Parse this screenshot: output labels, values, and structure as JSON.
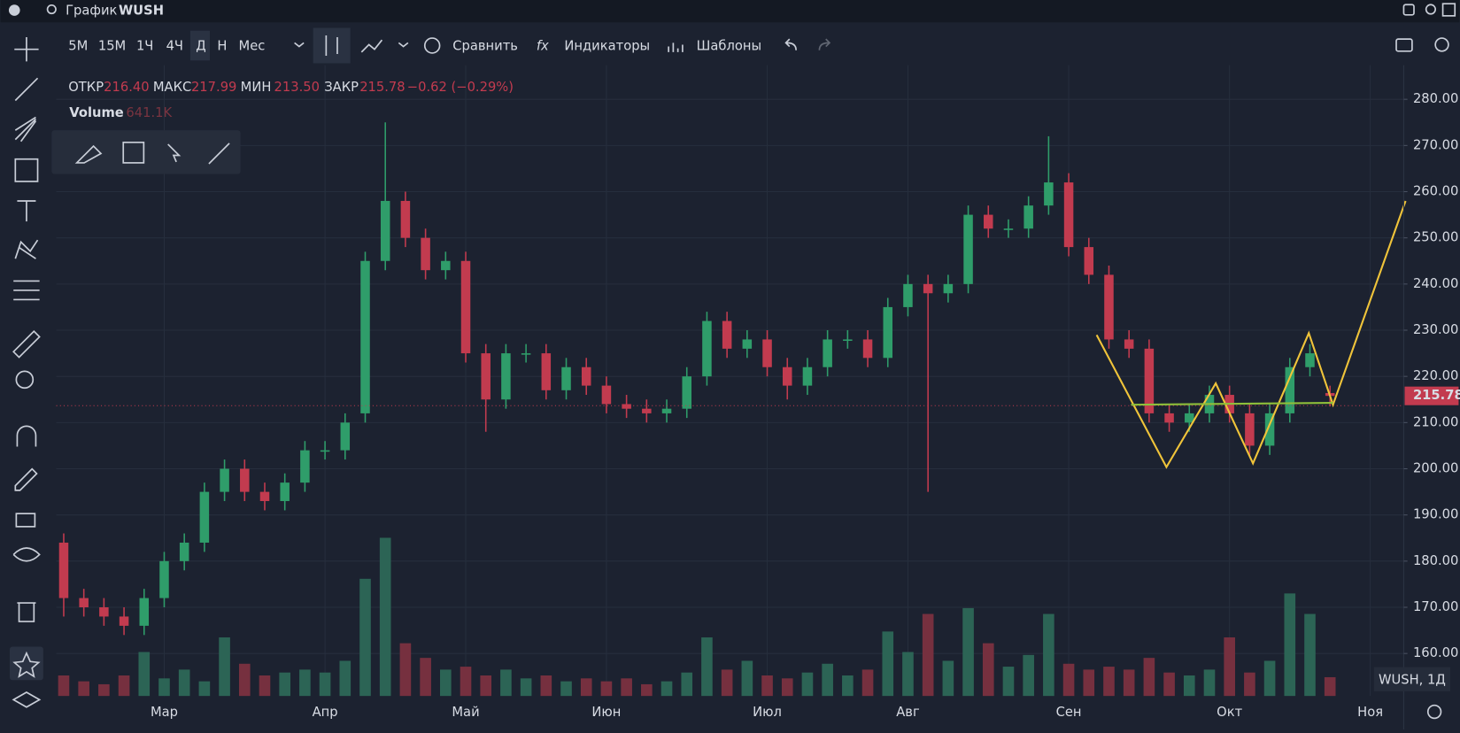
{
  "header": {
    "app_title": "График",
    "symbol": "WUSH"
  },
  "toolbar": {
    "intervals": [
      "5М",
      "15М",
      "1Ч",
      "4Ч",
      "Д",
      "Н",
      "Мес"
    ],
    "compare": "Сравнить",
    "indicators": "Индикаторы",
    "templates": "Шаблоны"
  },
  "legend": {
    "open_label": "ОТКР",
    "open": "216.40",
    "high_label": "МАКС",
    "high": "217.99",
    "low_label": "МИН",
    "low": "213.50",
    "close_label": "ЗАКР",
    "close": "215.78",
    "change": "−0.62 (−0.29%)",
    "volume_label": "Volume",
    "volume": "641.1K"
  },
  "symbol_badge": "WUSH, 1Д",
  "chart_data": {
    "type": "candlestick",
    "categories": [
      null,
      null,
      null,
      null,
      null,
      "Мар",
      null,
      null,
      null,
      null,
      null,
      null,
      null,
      "Апр",
      null,
      null,
      null,
      null,
      null,
      null,
      "Май",
      null,
      null,
      null,
      null,
      null,
      null,
      "Июн",
      null,
      null,
      null,
      null,
      null,
      null,
      null,
      "Июл",
      null,
      null,
      null,
      null,
      null,
      null,
      "Авг",
      null,
      null,
      null,
      null,
      null,
      null,
      null,
      "Сен",
      null,
      null,
      null,
      null,
      null,
      null,
      null,
      "Окт",
      null,
      null,
      null,
      null,
      null,
      null,
      "Ноя",
      null
    ],
    "open": [
      184,
      172,
      170,
      168,
      166,
      172,
      180,
      184,
      195,
      200,
      195,
      193,
      197,
      204,
      204,
      212,
      245,
      258,
      250,
      243,
      245,
      225,
      215,
      225,
      225,
      217,
      222,
      218,
      214,
      213,
      212,
      213,
      220,
      232,
      226,
      228,
      222,
      218,
      222,
      228,
      228,
      224,
      235,
      240,
      238,
      240,
      255,
      252,
      252,
      257,
      262,
      248,
      242,
      228,
      226,
      212,
      210,
      212,
      216,
      212,
      205,
      212,
      222,
      216.4,
      null,
      null,
      null
    ],
    "high": [
      186,
      174,
      172,
      170,
      174,
      182,
      186,
      197,
      202,
      202,
      197,
      199,
      206,
      206,
      212,
      247,
      275,
      260,
      252,
      247,
      247,
      227,
      227,
      227,
      227,
      224,
      224,
      220,
      216,
      215,
      215,
      222,
      234,
      234,
      230,
      230,
      224,
      224,
      230,
      230,
      230,
      237,
      242,
      242,
      242,
      257,
      257,
      254,
      259,
      272,
      264,
      250,
      244,
      230,
      228,
      214,
      214,
      218,
      218,
      214,
      214,
      224,
      227,
      217.99,
      null,
      null,
      null
    ],
    "low": [
      168,
      168,
      166,
      164,
      164,
      170,
      178,
      182,
      193,
      193,
      191,
      191,
      195,
      202,
      202,
      210,
      243,
      248,
      241,
      241,
      223,
      208,
      213,
      223,
      215,
      215,
      216,
      212,
      211,
      210,
      210,
      211,
      218,
      224,
      224,
      220,
      215,
      216,
      220,
      226,
      222,
      222,
      233,
      195,
      236,
      238,
      250,
      250,
      250,
      255,
      246,
      240,
      226,
      224,
      210,
      208,
      208,
      210,
      210,
      203,
      203,
      210,
      220,
      213.5,
      null,
      null,
      null
    ],
    "close": [
      172,
      170,
      168,
      166,
      172,
      180,
      184,
      195,
      200,
      195,
      193,
      197,
      204,
      204,
      210,
      245,
      258,
      250,
      243,
      245,
      225,
      215,
      225,
      225,
      217,
      222,
      218,
      214,
      213,
      212,
      213,
      220,
      232,
      226,
      228,
      222,
      218,
      222,
      228,
      228,
      224,
      235,
      240,
      238,
      240,
      255,
      252,
      252,
      257,
      262,
      248,
      242,
      228,
      226,
      212,
      210,
      212,
      216,
      212,
      205,
      212,
      222,
      225,
      215.78,
      null,
      null,
      null
    ],
    "volume": [
      700,
      500,
      400,
      700,
      1500,
      600,
      900,
      500,
      2000,
      1100,
      700,
      800,
      900,
      800,
      1200,
      4000,
      5400,
      1800,
      1300,
      900,
      1000,
      700,
      900,
      600,
      700,
      500,
      600,
      500,
      600,
      400,
      500,
      800,
      2000,
      900,
      1200,
      700,
      600,
      800,
      1100,
      700,
      900,
      2200,
      1500,
      2800,
      1200,
      3000,
      1800,
      1000,
      1400,
      2800,
      1100,
      900,
      1000,
      900,
      1300,
      800,
      700,
      900,
      2000,
      800,
      1200,
      3500,
      2800,
      641.1,
      null,
      null,
      null
    ],
    "up_color": "#2f9d6a",
    "down_color": "#c23b4f",
    "volume_up_color": "#2c6455",
    "volume_down_color": "#76303f",
    "ylim": [
      150.8,
      287.4
    ],
    "yticks": [
      {
        "value": 160,
        "label": "160.00"
      },
      {
        "value": 170,
        "label": "170.00"
      },
      {
        "value": 180,
        "label": "180.00"
      },
      {
        "value": 190,
        "label": "190.00"
      },
      {
        "value": 200,
        "label": "200.00"
      },
      {
        "value": 210,
        "label": "210.00"
      },
      {
        "value": 220,
        "label": "220.00"
      },
      {
        "value": 230,
        "label": "230.00"
      },
      {
        "value": 240,
        "label": "240.00"
      },
      {
        "value": 250,
        "label": "250.00"
      },
      {
        "value": 260,
        "label": "260.00"
      },
      {
        "value": 270,
        "label": "270.00"
      },
      {
        "value": 280,
        "label": "280.00"
      }
    ],
    "grid": true
  }
}
